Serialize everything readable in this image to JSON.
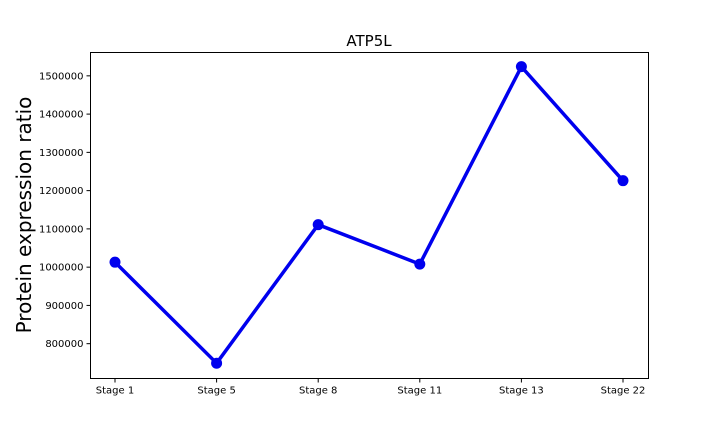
{
  "chart_data": {
    "type": "line",
    "title": "ATP5L",
    "xlabel": "",
    "ylabel": "Protein expression ratio",
    "categories": [
      "Stage 1",
      "Stage 5",
      "Stage 8",
      "Stage 11",
      "Stage 13",
      "Stage 22"
    ],
    "series": [
      {
        "values": [
          1013000,
          749000,
          1111000,
          1008000,
          1524000,
          1226000
        ],
        "color": "#0000ee"
      }
    ],
    "yticks": [
      800000,
      900000,
      1000000,
      1100000,
      1200000,
      1300000,
      1400000,
      1500000
    ],
    "ylim": [
      709000,
      1561000
    ],
    "grid": false,
    "legend": "none"
  }
}
